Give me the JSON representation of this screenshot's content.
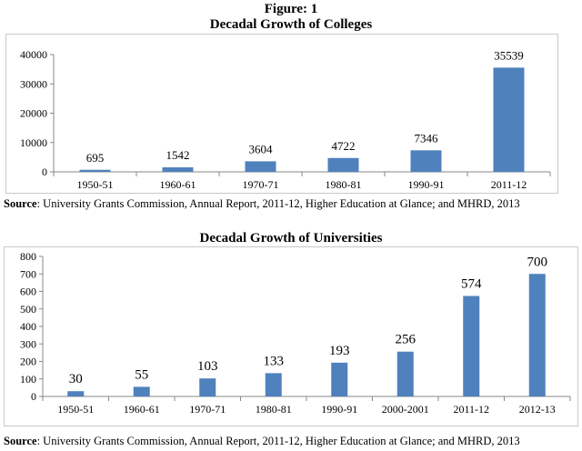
{
  "figure": {
    "number": "Figure: 1"
  },
  "chart_data": [
    {
      "type": "bar",
      "title": "Decadal Growth of Colleges",
      "categories": [
        "1950-51",
        "1960-61",
        "1970-71",
        "1980-81",
        "1990-91",
        "2011-12"
      ],
      "values": [
        695,
        1542,
        3604,
        4722,
        7346,
        35539
      ],
      "data_labels": [
        "695",
        "1542",
        "3604",
        "4722",
        "7346",
        "35539"
      ],
      "yticks": [
        0,
        10000,
        20000,
        30000,
        40000
      ],
      "ytick_labels": [
        "0",
        "10000",
        "20000",
        "30000",
        "40000"
      ],
      "ylim": [
        0,
        40000
      ],
      "xlabel": "",
      "ylabel": "",
      "grid": false,
      "legend": "none",
      "color": "#4f81bd",
      "source_label": "Source",
      "source_text": ": University Grants Commission, Annual Report, 2011-12, Higher Education at Glance; and MHRD, 2013"
    },
    {
      "type": "bar",
      "title": "Decadal Growth of Universities",
      "categories": [
        "1950-51",
        "1960-61",
        "1970-71",
        "1980-81",
        "1990-91",
        "2000-2001",
        "2011-12",
        "2012-13"
      ],
      "values": [
        30,
        55,
        103,
        133,
        193,
        256,
        574,
        700
      ],
      "data_labels": [
        "30",
        "55",
        "103",
        "133",
        "193",
        "256",
        "574",
        "700"
      ],
      "yticks": [
        0,
        100,
        200,
        300,
        400,
        500,
        600,
        700,
        800
      ],
      "ytick_labels": [
        "0",
        "100",
        "200",
        "300",
        "400",
        "500",
        "600",
        "700",
        "800"
      ],
      "ylim": [
        0,
        800
      ],
      "xlabel": "",
      "ylabel": "",
      "grid": false,
      "legend": "none",
      "color": "#4f81bd",
      "source_label": "Source",
      "source_text": ": University Grants Commission, Annual Report, 2011-12, Higher Education at Glance; and MHRD, 2013"
    }
  ]
}
